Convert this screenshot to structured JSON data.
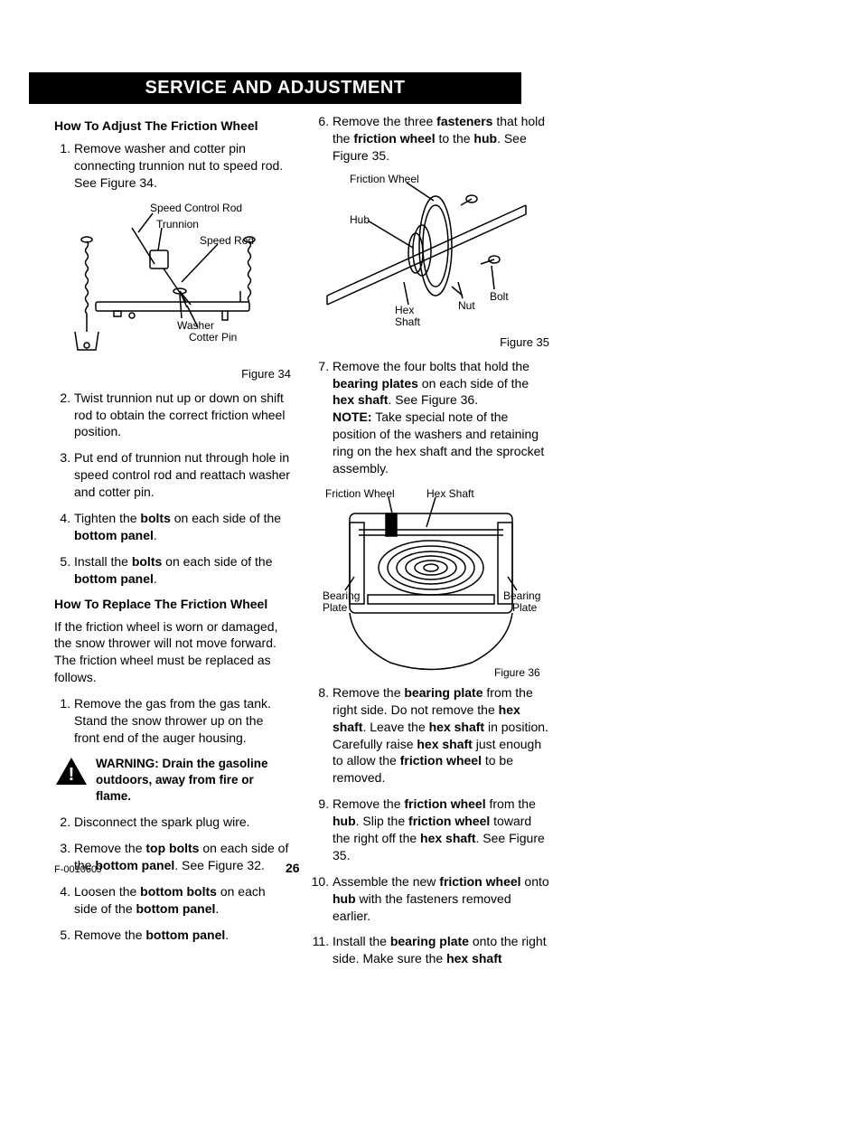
{
  "banner": "SERVICE AND ADJUSTMENT",
  "left": {
    "heading1": "How To Adjust The Friction Wheel",
    "adjust_steps": [
      "Remove washer and cotter pin connecting trunnion nut to speed rod. See Figure 34.",
      "Twist trunnion nut up or down on shift rod to obtain the correct friction wheel position.",
      "Put end of trunnion nut through hole in speed control rod and reattach washer and cotter pin.",
      "Tighten the <b>bolts</b> on each side of the <b>bottom panel</b>.",
      "Install the <b>bolts</b> on each side of the <b>bottom panel</b>."
    ],
    "fig34_labels": {
      "speed_control_rod": "Speed Control Rod",
      "trunnion": "Trunnion",
      "speed_rod": "Speed Rod",
      "washer": "Washer",
      "cotter_pin": "Cotter Pin"
    },
    "fig34_caption": "Figure 34",
    "heading2": "How To Replace The Friction Wheel",
    "replace_intro": "If the friction wheel is worn or damaged, the snow thrower will not move forward. The friction wheel must be replaced as follows.",
    "replace_steps_a": [
      "Remove the gas from the gas tank. Stand the snow thrower up on the front end of the auger housing."
    ],
    "warning": "WARNING: Drain the gasoline outdoors, away from fire or flame.",
    "replace_steps_b": [
      "Disconnect the spark plug wire.",
      "Remove the <b>top bolts</b> on each side of the <b>bottom panel</b>. See Figure 32.",
      "Loosen the <b>bottom bolts</b> on each side of the <b>bottom panel</b>.",
      "Remove the <b>bottom panel</b>."
    ]
  },
  "right": {
    "steps_c": [
      "Remove the three <b>fasteners</b> that hold the <b>friction wheel</b> to the <b>hub</b>. See Figure 35."
    ],
    "fig35_labels": {
      "friction_wheel": "Friction Wheel",
      "hub": "Hub",
      "bolt": "Bolt",
      "hex_shaft": "Hex\nShaft",
      "nut": "Nut"
    },
    "fig35_caption": "Figure 35",
    "steps_d": [
      "Remove the four bolts that hold the <b>bearing plates</b> on each side of the <b>hex shaft</b>. See Figure 36.<br><b>NOTE:</b> Take special note of the position of the washers and retaining ring on the hex shaft and the sprocket assembly."
    ],
    "fig36_labels": {
      "friction_wheel": "Friction Wheel",
      "hex_shaft": "Hex Shaft",
      "bearing_plate_l": "Bearing\nPlate",
      "bearing_plate_r": "Bearing\nPlate"
    },
    "fig36_caption": "Figure 36",
    "steps_e": [
      "Remove the <b>bearing plate</b> from the right side. Do not remove the <b>hex shaft</b>. Leave the <b>hex shaft</b> in position. Carefully raise <b>hex shaft</b> just enough to allow the <b>friction wheel</b> to be removed.",
      "Remove the <b>friction wheel</b> from the <b>hub</b>. Slip the <b>friction wheel</b> toward the right off the <b>hex shaft</b>. See Figure 35.",
      "Assemble the new <b>friction wheel</b> onto <b>hub</b> with the fasteners removed earlier.",
      "Install the <b>bearing plate</b> onto the right side. Make sure the <b>hex shaft</b>"
    ]
  },
  "footer_code": "F-001060J",
  "page_number": "26",
  "colors": {
    "black": "#000000",
    "white": "#ffffff"
  }
}
